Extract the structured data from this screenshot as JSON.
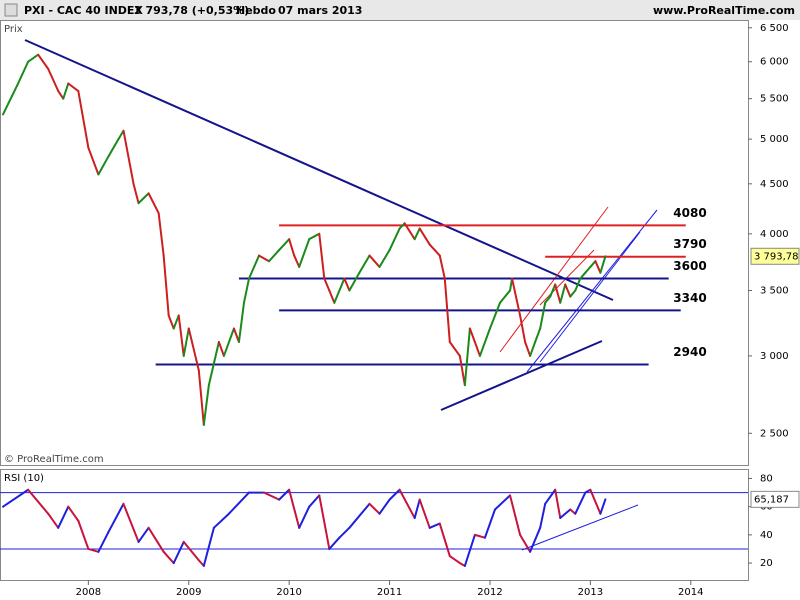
{
  "header": {
    "title": "PXI - CAC 40 INDEX",
    "change": "3 793,78 (+0,53%)",
    "period": "Hebdo",
    "date": "07 mars 2013",
    "site": "www.ProRealTime.com"
  },
  "chart_data": [
    {
      "type": "line",
      "title": "Prix",
      "credit": "© ProRealTime.com",
      "log_scale": true,
      "xlim": [
        2007.12,
        2014.57
      ],
      "ylim": [
        2320,
        6620
      ],
      "yticks": [
        {
          "value": 2500,
          "label": "2 500"
        },
        {
          "value": 3000,
          "label": "3 000"
        },
        {
          "value": 3500,
          "label": "3 500"
        },
        {
          "value": 4000,
          "label": "4 000"
        },
        {
          "value": 4500,
          "label": "4 500"
        },
        {
          "value": 5000,
          "label": "5 000"
        },
        {
          "value": 5500,
          "label": "5 500"
        },
        {
          "value": 6000,
          "label": "6 000"
        },
        {
          "value": 6500,
          "label": "6 500"
        }
      ],
      "up_color": "#1a8a1a",
      "down_color": "#cc1f1f",
      "x": [
        2007.15,
        2007.3,
        2007.4,
        2007.5,
        2007.6,
        2007.7,
        2007.75,
        2007.8,
        2007.9,
        2008.0,
        2008.1,
        2008.2,
        2008.3,
        2008.35,
        2008.45,
        2008.5,
        2008.6,
        2008.7,
        2008.75,
        2008.8,
        2008.85,
        2008.9,
        2008.95,
        2009.0,
        2009.1,
        2009.15,
        2009.2,
        2009.3,
        2009.35,
        2009.45,
        2009.5,
        2009.55,
        2009.6,
        2009.7,
        2009.8,
        2009.9,
        2010.0,
        2010.05,
        2010.1,
        2010.2,
        2010.3,
        2010.35,
        2010.4,
        2010.45,
        2010.55,
        2010.6,
        2010.7,
        2010.8,
        2010.9,
        2011.0,
        2011.1,
        2011.15,
        2011.25,
        2011.3,
        2011.4,
        2011.45,
        2011.5,
        2011.55,
        2011.6,
        2011.7,
        2011.75,
        2011.8,
        2011.85,
        2011.9,
        2012.0,
        2012.1,
        2012.2,
        2012.22,
        2012.3,
        2012.35,
        2012.4,
        2012.45,
        2012.5,
        2012.55,
        2012.6,
        2012.65,
        2012.7,
        2012.75,
        2012.8,
        2012.85,
        2012.9,
        2012.95,
        2013.0,
        2013.05,
        2013.1,
        2013.15
      ],
      "values": [
        5300,
        5700,
        6000,
        6100,
        5900,
        5600,
        5500,
        5700,
        5600,
        4900,
        4600,
        4800,
        5000,
        5100,
        4500,
        4300,
        4400,
        4200,
        3800,
        3300,
        3200,
        3300,
        3000,
        3200,
        2900,
        2550,
        2800,
        3100,
        3000,
        3200,
        3100,
        3400,
        3600,
        3800,
        3750,
        3850,
        3950,
        3800,
        3700,
        3950,
        4000,
        3600,
        3500,
        3400,
        3600,
        3500,
        3650,
        3800,
        3700,
        3850,
        4050,
        4100,
        3950,
        4050,
        3900,
        3850,
        3800,
        3600,
        3100,
        3000,
        2800,
        3200,
        3100,
        3000,
        3200,
        3400,
        3500,
        3600,
        3300,
        3100,
        3000,
        3100,
        3200,
        3400,
        3450,
        3550,
        3400,
        3550,
        3450,
        3500,
        3600,
        3650,
        3700,
        3750,
        3650,
        3793.78
      ],
      "last_label": "3 793,78",
      "levels": [
        {
          "value": 4080,
          "color": "#e02020",
          "x": [
            2009.9,
            2013.95
          ]
        },
        {
          "value": 3790,
          "color": "#e02020",
          "x": [
            2012.55,
            2013.95
          ]
        },
        {
          "value": 3600,
          "color": "#14148c",
          "x": [
            2009.5,
            2013.78
          ]
        },
        {
          "value": 3340,
          "color": "#14148c",
          "x": [
            2009.9,
            2013.9
          ]
        },
        {
          "value": 2940,
          "color": "#14148c",
          "x": [
            2008.67,
            2013.58
          ]
        }
      ]
    },
    {
      "type": "line",
      "title": "RSI (10)",
      "xlim": [
        2007.12,
        2014.57
      ],
      "ylim": [
        8,
        86
      ],
      "yticks": [
        20,
        40,
        60,
        80
      ],
      "xticks": [
        2008,
        2009,
        2010,
        2011,
        2012,
        2013,
        2014
      ],
      "levels": [
        70,
        30
      ],
      "up_color": "#1f1fe0",
      "down_color": "#c8143c",
      "x": [
        2007.15,
        2007.4,
        2007.6,
        2007.7,
        2007.8,
        2007.9,
        2008.0,
        2008.1,
        2008.2,
        2008.35,
        2008.5,
        2008.6,
        2008.75,
        2008.85,
        2008.95,
        2009.1,
        2009.15,
        2009.25,
        2009.4,
        2009.6,
        2009.75,
        2009.9,
        2010.0,
        2010.1,
        2010.2,
        2010.3,
        2010.4,
        2010.5,
        2010.6,
        2010.8,
        2010.9,
        2011.0,
        2011.1,
        2011.25,
        2011.3,
        2011.4,
        2011.5,
        2011.6,
        2011.7,
        2011.75,
        2011.85,
        2011.95,
        2012.05,
        2012.2,
        2012.3,
        2012.4,
        2012.5,
        2012.55,
        2012.65,
        2012.7,
        2012.8,
        2012.85,
        2012.95,
        2013.0,
        2013.1,
        2013.15
      ],
      "values": [
        60,
        72,
        55,
        45,
        60,
        50,
        30,
        28,
        42,
        62,
        35,
        45,
        28,
        20,
        35,
        22,
        18,
        45,
        55,
        70,
        70,
        65,
        72,
        45,
        60,
        68,
        30,
        38,
        45,
        62,
        55,
        65,
        72,
        52,
        65,
        45,
        48,
        25,
        20,
        18,
        40,
        38,
        58,
        68,
        40,
        28,
        45,
        62,
        72,
        52,
        58,
        55,
        70,
        72,
        55,
        65.187
      ],
      "last_label": "65,187"
    }
  ]
}
